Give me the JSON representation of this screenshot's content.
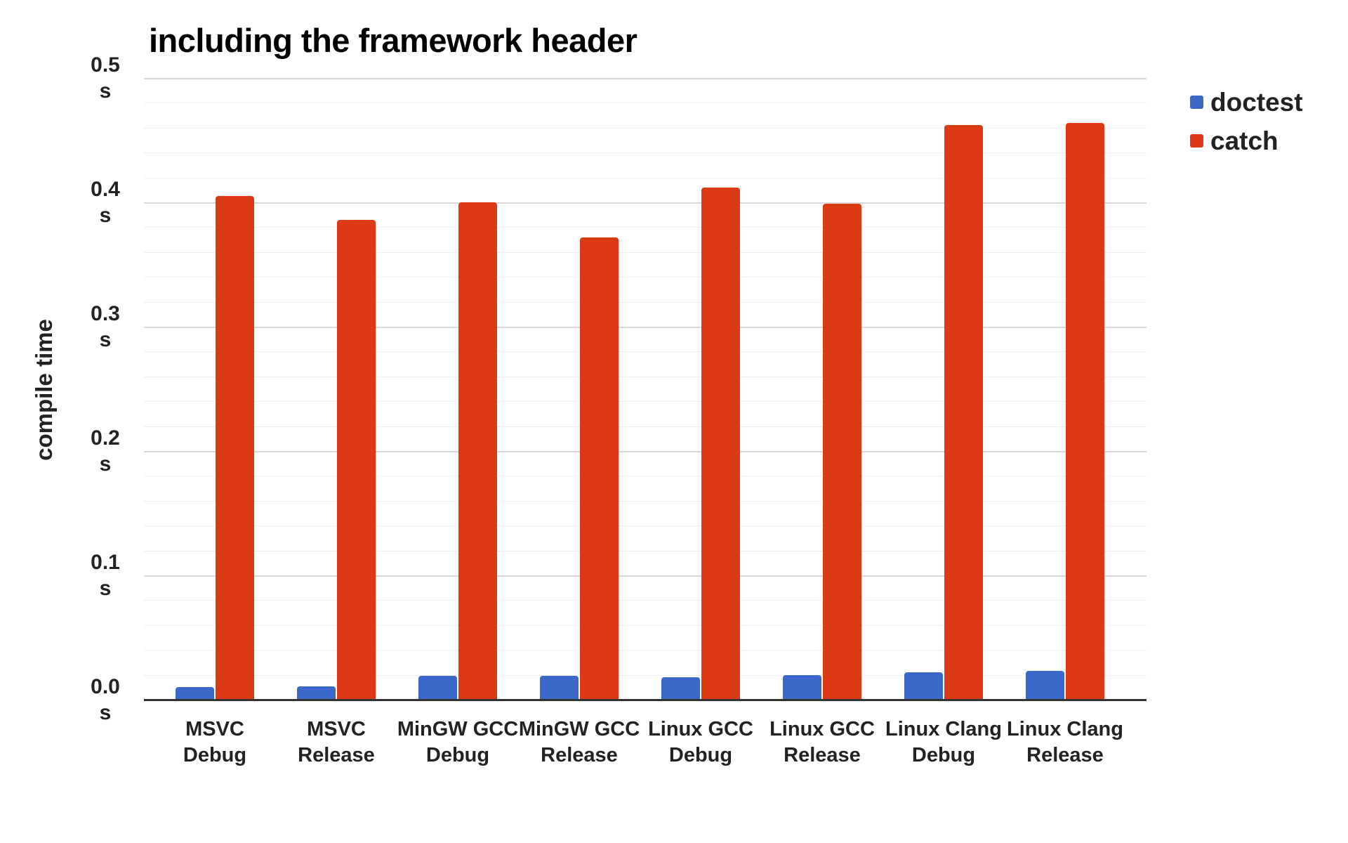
{
  "chart_data": {
    "type": "bar",
    "title": "including the framework header",
    "ylabel": "compile time",
    "unit": "s",
    "categories": [
      [
        "MSVC",
        "Debug"
      ],
      [
        "MSVC",
        "Release"
      ],
      [
        "MinGW GCC",
        "Debug"
      ],
      [
        "MinGW GCC",
        "Release"
      ],
      [
        "Linux GCC",
        "Debug"
      ],
      [
        "Linux GCC",
        "Release"
      ],
      [
        "Linux Clang",
        "Debug"
      ],
      [
        "Linux Clang",
        "Release"
      ]
    ],
    "series": [
      {
        "name": "doctest",
        "color": "#3b68c9",
        "values": [
          0.01,
          0.011,
          0.019,
          0.019,
          0.018,
          0.02,
          0.022,
          0.023
        ]
      },
      {
        "name": "catch",
        "color": "#dc3a15",
        "values": [
          0.405,
          0.386,
          0.4,
          0.372,
          0.412,
          0.399,
          0.462,
          0.464
        ]
      }
    ],
    "ylim": [
      0,
      0.5
    ],
    "y_major_step": 0.1,
    "y_minor_step": 0.02,
    "y_tick_labels": [
      [
        "0.0",
        "s"
      ],
      [
        "0.1",
        "s"
      ],
      [
        "0.2",
        "s"
      ],
      [
        "0.3",
        "s"
      ],
      [
        "0.4",
        "s"
      ],
      [
        "0.5",
        "s"
      ]
    ],
    "grid": true,
    "legend_position": "right"
  }
}
